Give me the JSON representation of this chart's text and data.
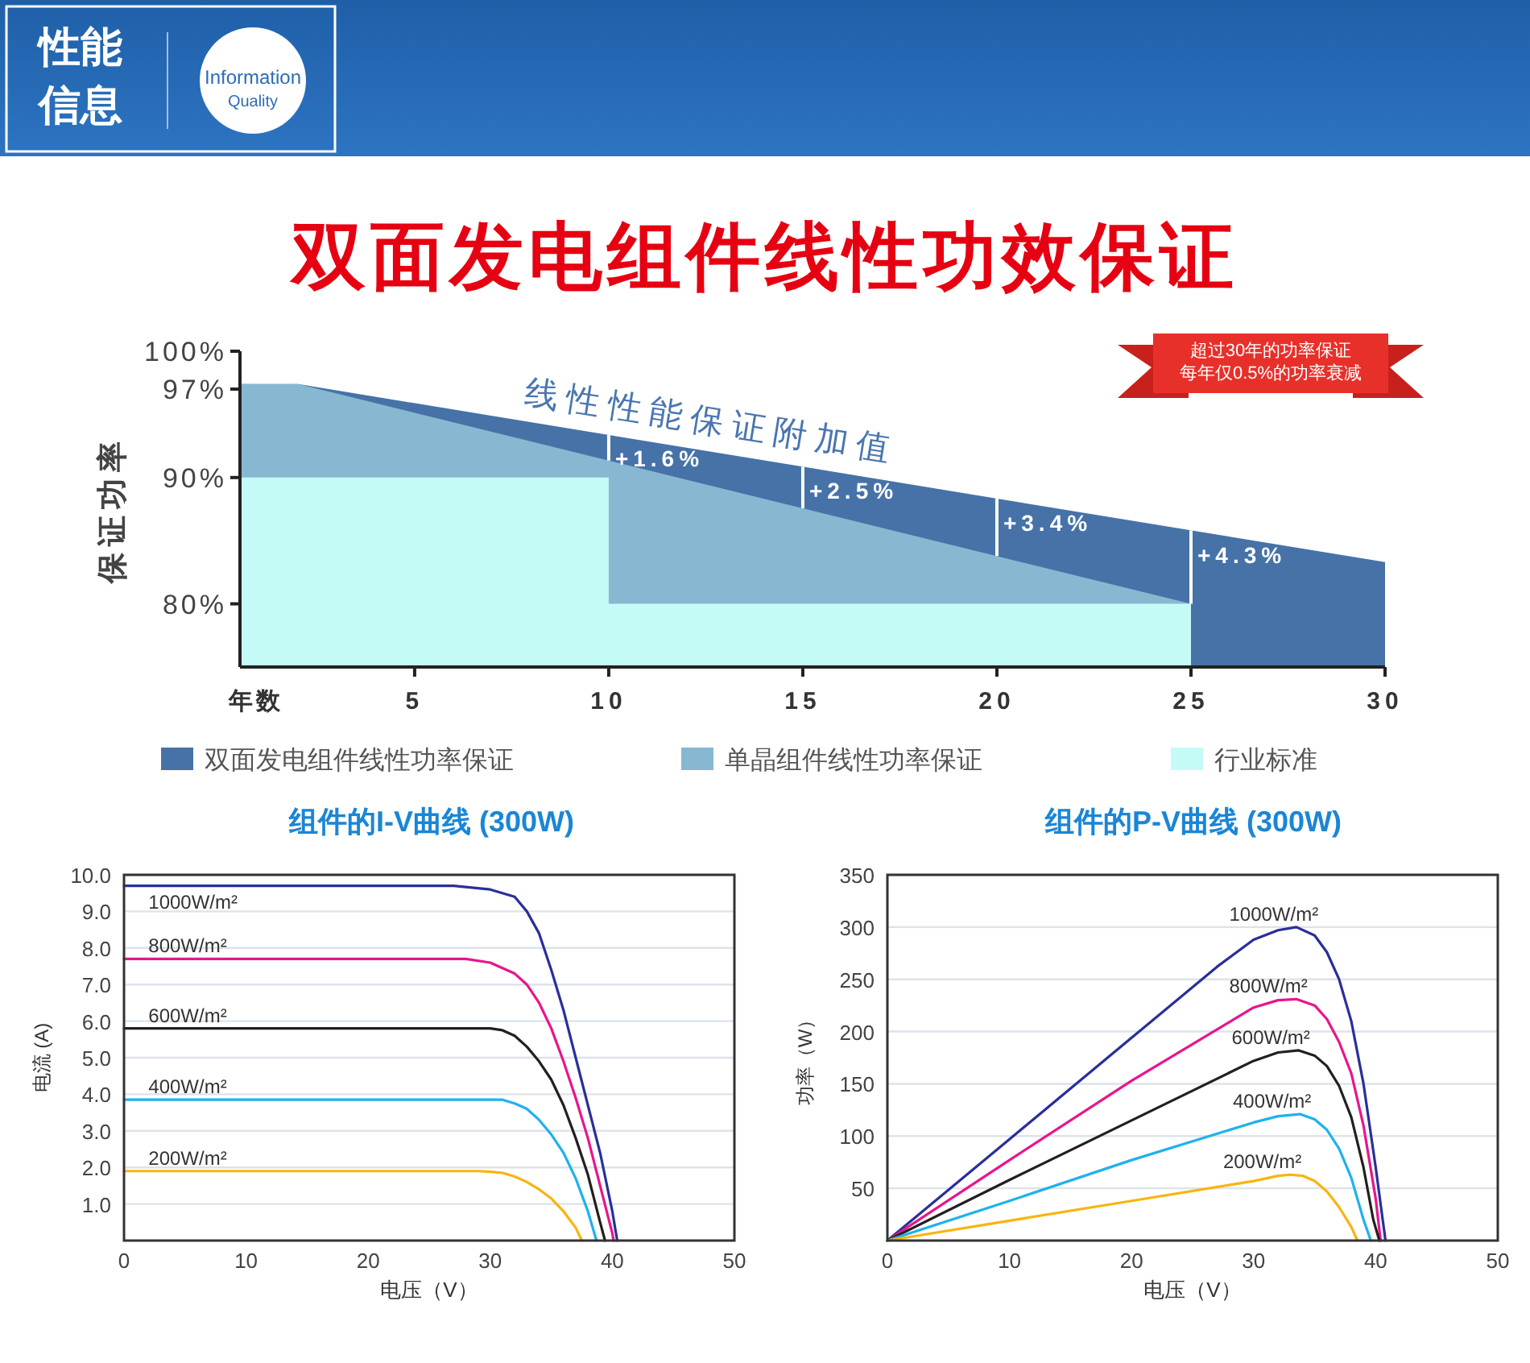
{
  "chart_data": [
    {
      "type": "other",
      "annotations": [
        "性能",
        "信息",
        "Information",
        "Quality"
      ]
    },
    {
      "type": "area",
      "title": "双面发电组件线性功效保证",
      "xlabel": "年数",
      "ylabel": "保证功率",
      "xlim": [
        0.5,
        30
      ],
      "ylim": [
        75,
        100
      ],
      "xticks": [
        5,
        10,
        15,
        20,
        25,
        30
      ],
      "yticks": [
        {
          "value": 100,
          "label": "100%"
        },
        {
          "value": 97,
          "label": "97%"
        },
        {
          "value": 90,
          "label": "90%"
        },
        {
          "value": 80,
          "label": "80%"
        }
      ],
      "legend": "bottom",
      "series": [
        {
          "name": "双面发电组件线性功率保证",
          "color": "#4672a8",
          "x": [
            0.5,
            2,
            30
          ],
          "values": [
            97.4,
            97.4,
            83.3
          ]
        },
        {
          "name": "单晶组件线性功率保证",
          "color": "#88b8d1",
          "x": [
            0.5,
            2,
            25
          ],
          "values": [
            97.4,
            97.4,
            80
          ]
        },
        {
          "name": "行业标准",
          "color": "#c5fbf7",
          "x": [
            0.5,
            10,
            10,
            25
          ],
          "values": [
            90,
            90,
            80,
            80
          ]
        }
      ],
      "annotations": [
        {
          "text": "+1.6%",
          "x": 10,
          "y": 93.4
        },
        {
          "text": "+2.5%",
          "x": 15,
          "y": 90.9
        },
        {
          "text": "+3.4%",
          "x": 20,
          "y": 88.3
        },
        {
          "text": "+4.3%",
          "x": 25,
          "y": 85.8
        },
        "线性性能保证附加值",
        "超过30年的功率保证",
        "每年仅0.5%的功率衰减"
      ]
    },
    {
      "type": "line",
      "title": "组件的I-V曲线 (300W)",
      "xlabel": "电压（V）",
      "ylabel": "电流 (A)",
      "xlim": [
        0,
        50
      ],
      "ylim": [
        0,
        10
      ],
      "xticks": [
        0,
        10,
        20,
        30,
        40,
        50
      ],
      "yticks": [
        {
          "value": 1,
          "label": "1.0"
        },
        {
          "value": 2,
          "label": "2.0"
        },
        {
          "value": 3,
          "label": "3.0"
        },
        {
          "value": 4,
          "label": "4.0"
        },
        {
          "value": 5,
          "label": "5.0"
        },
        {
          "value": 6,
          "label": "6.0"
        },
        {
          "value": 7,
          "label": "7.0"
        },
        {
          "value": 8,
          "label": "8.0"
        },
        {
          "value": 9,
          "label": "9.0"
        },
        {
          "value": 10,
          "label": "10.0"
        }
      ],
      "grid": "y",
      "series": [
        {
          "name": "1000W/m²",
          "color": "#2a2f9a",
          "x": [
            0,
            27,
            30,
            32,
            33,
            34,
            35,
            36,
            37,
            38,
            39,
            40,
            40.4
          ],
          "values": [
            9.7,
            9.7,
            9.6,
            9.4,
            9.0,
            8.4,
            7.4,
            6.3,
            5.0,
            3.7,
            2.4,
            0.8,
            0
          ]
        },
        {
          "name": "800W/m²",
          "color": "#e8158c",
          "x": [
            0,
            28,
            30,
            32,
            33,
            34,
            35,
            36,
            37,
            38,
            39,
            40,
            40.1
          ],
          "values": [
            7.7,
            7.7,
            7.6,
            7.3,
            7.0,
            6.5,
            5.8,
            4.9,
            3.9,
            2.8,
            1.5,
            0.2,
            0
          ]
        },
        {
          "name": "600W/m²",
          "color": "#231f20",
          "x": [
            0,
            30,
            31,
            32,
            33,
            34,
            35,
            36,
            37,
            38,
            39,
            39.4
          ],
          "values": [
            5.8,
            5.8,
            5.75,
            5.6,
            5.3,
            4.9,
            4.4,
            3.7,
            2.8,
            1.8,
            0.5,
            0
          ]
        },
        {
          "name": "400W/m²",
          "color": "#1fb1ee",
          "x": [
            0,
            31,
            32,
            33,
            34,
            35,
            36,
            37,
            38,
            38.7
          ],
          "values": [
            3.85,
            3.85,
            3.75,
            3.6,
            3.3,
            2.9,
            2.4,
            1.7,
            0.8,
            0
          ]
        },
        {
          "name": "200W/m²",
          "color": "#f9b40f",
          "x": [
            0,
            29,
            30,
            31,
            32,
            33,
            34,
            35,
            36,
            37,
            37.5
          ],
          "values": [
            1.9,
            1.9,
            1.88,
            1.85,
            1.75,
            1.6,
            1.4,
            1.15,
            0.8,
            0.35,
            0
          ]
        }
      ]
    },
    {
      "type": "line",
      "title": "组件的P-V曲线 (300W)",
      "xlabel": "电压（V）",
      "ylabel": "功率（W）",
      "xlim": [
        0,
        50
      ],
      "ylim": [
        0,
        350
      ],
      "xticks": [
        0,
        10,
        20,
        30,
        40,
        50
      ],
      "yticks": [
        50,
        100,
        150,
        200,
        250,
        300,
        350
      ],
      "grid": "y",
      "series": [
        {
          "name": "1000W/m²",
          "color": "#2a2f9a",
          "x": [
            0,
            10,
            20,
            27,
            30,
            32,
            33.5,
            35,
            36,
            37,
            38,
            39,
            40,
            40.8
          ],
          "values": [
            0,
            97,
            194,
            262,
            288,
            297,
            300,
            292,
            276,
            250,
            210,
            150,
            70,
            0
          ]
        },
        {
          "name": "800W/m²",
          "color": "#e8158c",
          "x": [
            0,
            10,
            20,
            30,
            32,
            33.5,
            35,
            36,
            37,
            38,
            39,
            40,
            40.4
          ],
          "values": [
            0,
            77,
            153,
            223,
            230,
            231,
            225,
            212,
            190,
            160,
            110,
            40,
            0
          ]
        },
        {
          "name": "600W/m²",
          "color": "#231f20",
          "x": [
            0,
            10,
            20,
            30,
            32,
            33.7,
            35,
            36,
            37,
            38,
            39,
            39.8,
            40.3
          ],
          "values": [
            0,
            58,
            115,
            172,
            180,
            182,
            177,
            167,
            148,
            118,
            70,
            20,
            0
          ]
        },
        {
          "name": "400W/m²",
          "color": "#1fb1ee",
          "x": [
            0,
            10,
            20,
            30,
            32,
            33.8,
            35,
            36,
            37,
            38,
            39,
            39.6
          ],
          "values": [
            0,
            38,
            77,
            113,
            119,
            121,
            116,
            106,
            88,
            60,
            20,
            0
          ]
        },
        {
          "name": "200W/m²",
          "color": "#f9b40f",
          "x": [
            0,
            10,
            20,
            30,
            32,
            33,
            34,
            35,
            36,
            37,
            38,
            38.5
          ],
          "values": [
            0,
            19,
            38,
            57,
            62,
            63,
            62,
            57,
            47,
            32,
            13,
            0
          ]
        }
      ]
    }
  ]
}
